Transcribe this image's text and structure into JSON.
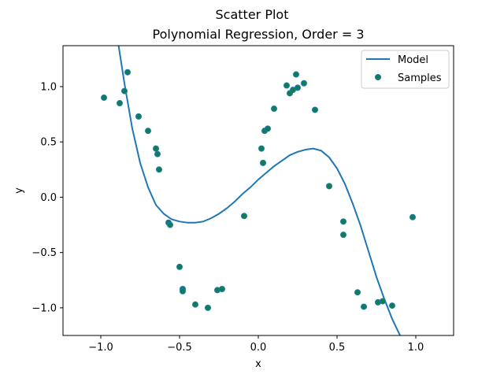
{
  "chart_data": {
    "type": "scatter",
    "suptitle": "Scatter Plot",
    "title": "Polynomial Regression, Order = 3",
    "xlabel": "x",
    "ylabel": "y",
    "xlim": [
      -1.24,
      1.24
    ],
    "ylim": [
      -1.25,
      1.37
    ],
    "xticks": [
      -1.0,
      -0.5,
      0.0,
      0.5,
      1.0
    ],
    "xtick_labels": [
      "−1.0",
      "−0.5",
      "0.0",
      "0.5",
      "1.0"
    ],
    "yticks": [
      -1.0,
      -0.5,
      0.0,
      0.5,
      1.0
    ],
    "ytick_labels": [
      "−1.0",
      "−0.5",
      "0.0",
      "0.5",
      "1.0"
    ],
    "grid": false,
    "legend_position": "top-right",
    "legend": [
      "Model",
      "Samples"
    ],
    "model": {
      "name": "Model",
      "color": "#1f77b4",
      "curve_points": [
        [
          -0.887,
          1.37
        ],
        [
          -0.85,
          1.03
        ],
        [
          -0.8,
          0.62
        ],
        [
          -0.75,
          0.31
        ],
        [
          -0.7,
          0.09
        ],
        [
          -0.65,
          -0.07
        ],
        [
          -0.6,
          -0.15
        ],
        [
          -0.55,
          -0.2
        ],
        [
          -0.5,
          -0.22
        ],
        [
          -0.45,
          -0.23
        ],
        [
          -0.4,
          -0.23
        ],
        [
          -0.35,
          -0.22
        ],
        [
          -0.3,
          -0.19
        ],
        [
          -0.25,
          -0.15
        ],
        [
          -0.2,
          -0.1
        ],
        [
          -0.15,
          -0.04
        ],
        [
          -0.1,
          0.03
        ],
        [
          -0.05,
          0.09
        ],
        [
          0.0,
          0.16
        ],
        [
          0.05,
          0.22
        ],
        [
          0.1,
          0.28
        ],
        [
          0.15,
          0.33
        ],
        [
          0.2,
          0.38
        ],
        [
          0.25,
          0.41
        ],
        [
          0.3,
          0.43
        ],
        [
          0.35,
          0.44
        ],
        [
          0.4,
          0.42
        ],
        [
          0.45,
          0.36
        ],
        [
          0.5,
          0.26
        ],
        [
          0.55,
          0.12
        ],
        [
          0.6,
          -0.06
        ],
        [
          0.65,
          -0.26
        ],
        [
          0.7,
          -0.49
        ],
        [
          0.75,
          -0.72
        ],
        [
          0.8,
          -0.92
        ],
        [
          0.85,
          -1.1
        ],
        [
          0.9,
          -1.25
        ]
      ]
    },
    "samples": {
      "name": "Samples",
      "fill_color": "#0f7f4f",
      "edge_color": "#1f77b4",
      "points": [
        [
          -0.98,
          0.9
        ],
        [
          -0.88,
          0.85
        ],
        [
          -0.85,
          0.96
        ],
        [
          -0.83,
          1.13
        ],
        [
          -0.76,
          0.73
        ],
        [
          -0.7,
          0.6
        ],
        [
          -0.65,
          0.44
        ],
        [
          -0.64,
          0.39
        ],
        [
          -0.63,
          0.25
        ],
        [
          -0.57,
          -0.23
        ],
        [
          -0.56,
          -0.25
        ],
        [
          -0.5,
          -0.63
        ],
        [
          -0.48,
          -0.83
        ],
        [
          -0.48,
          -0.85
        ],
        [
          -0.4,
          -0.97
        ],
        [
          -0.32,
          -1.0
        ],
        [
          -0.26,
          -0.84
        ],
        [
          -0.23,
          -0.83
        ],
        [
          -0.09,
          -0.17
        ],
        [
          0.02,
          0.44
        ],
        [
          0.03,
          0.31
        ],
        [
          0.04,
          0.6
        ],
        [
          0.06,
          0.62
        ],
        [
          0.1,
          0.8
        ],
        [
          0.18,
          1.01
        ],
        [
          0.2,
          0.94
        ],
        [
          0.22,
          0.97
        ],
        [
          0.24,
          1.11
        ],
        [
          0.25,
          0.99
        ],
        [
          0.29,
          1.03
        ],
        [
          0.36,
          0.79
        ],
        [
          0.45,
          0.1
        ],
        [
          0.54,
          -0.22
        ],
        [
          0.54,
          -0.34
        ],
        [
          0.63,
          -0.86
        ],
        [
          0.67,
          -0.99
        ],
        [
          0.76,
          -0.95
        ],
        [
          0.79,
          -0.94
        ],
        [
          0.85,
          -0.98
        ],
        [
          0.98,
          -0.18
        ]
      ]
    }
  }
}
